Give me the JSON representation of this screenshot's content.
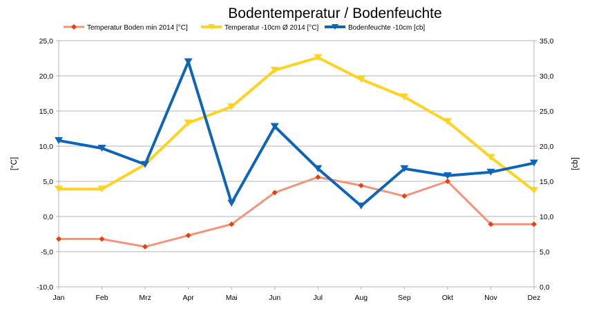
{
  "chart_data": {
    "type": "line",
    "title": "Bodentemperatur / Bodenfeuchte",
    "categories": [
      "Jan",
      "Feb",
      "Mrz",
      "Apr",
      "Mai",
      "Jun",
      "Jul",
      "Aug",
      "Sep",
      "Okt",
      "Nov",
      "Dez"
    ],
    "ylabel": "[°C]",
    "y2label": "[cb]",
    "ylim": [
      -10,
      25
    ],
    "y2lim": [
      0,
      35
    ],
    "yticks": [
      "25,0",
      "20,0",
      "15,0",
      "10,0",
      "5,0",
      "0,0",
      "-5,0",
      "-10,0"
    ],
    "y2ticks": [
      "35,0",
      "30,0",
      "25,0",
      "20,0",
      "15,0",
      "10,0",
      "5,0",
      "0,0"
    ],
    "grid": true,
    "legend_position": "top",
    "series": [
      {
        "name": "Temperatur Boden min  2014 [°C]",
        "axis": "left",
        "color": "#f4937a",
        "marker": "diamond",
        "marker_color": "#e8400c",
        "values": [
          -3.2,
          -3.2,
          -4.3,
          -2.7,
          -1.1,
          3.4,
          5.6,
          4.4,
          2.9,
          5.0,
          -1.1,
          -1.1
        ]
      },
      {
        "name": "Temperatur -10cm Ø 2014 [°C]",
        "axis": "left",
        "color": "#ffd320",
        "marker": "triangle-down",
        "marker_color": "#ffd320",
        "values": [
          3.9,
          3.9,
          7.4,
          13.3,
          15.6,
          20.8,
          22.6,
          19.5,
          17.0,
          13.5,
          8.4,
          3.7
        ]
      },
      {
        "name": "Bodenfeuchte -10cm [cb]",
        "axis": "right",
        "color": "#0e64b7",
        "marker": "triangle-down",
        "marker_color": "#0e64b7",
        "values": [
          20.8,
          19.7,
          17.4,
          32.0,
          11.9,
          22.8,
          16.8,
          11.5,
          16.8,
          15.8,
          16.3,
          17.6
        ]
      }
    ]
  }
}
